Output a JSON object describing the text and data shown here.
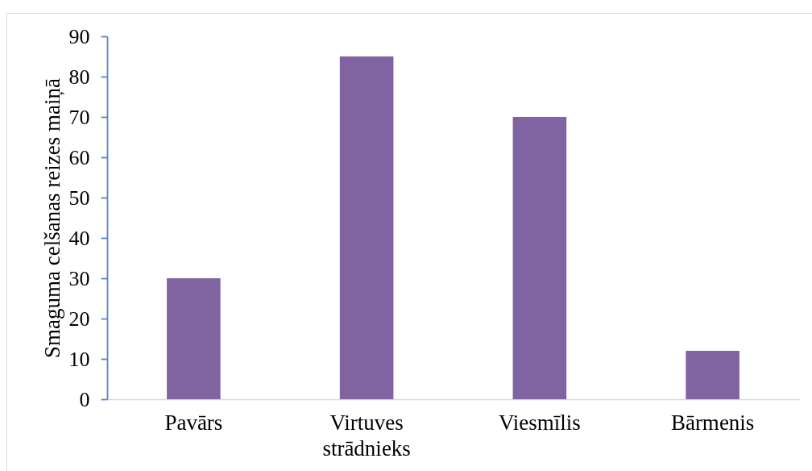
{
  "chart_data": {
    "type": "bar",
    "ylabel": "Smaguma celšanas reizes maiņā",
    "categories": [
      "Pavārs",
      "Virtuves strādnieks",
      "Viesmīlis",
      "Bārmenis"
    ],
    "values": [
      30,
      85,
      70,
      12
    ],
    "color": "#8064a2",
    "ylim": [
      0,
      90
    ],
    "yticks": [
      0,
      10,
      20,
      30,
      40,
      50,
      60,
      70,
      80,
      90
    ]
  }
}
